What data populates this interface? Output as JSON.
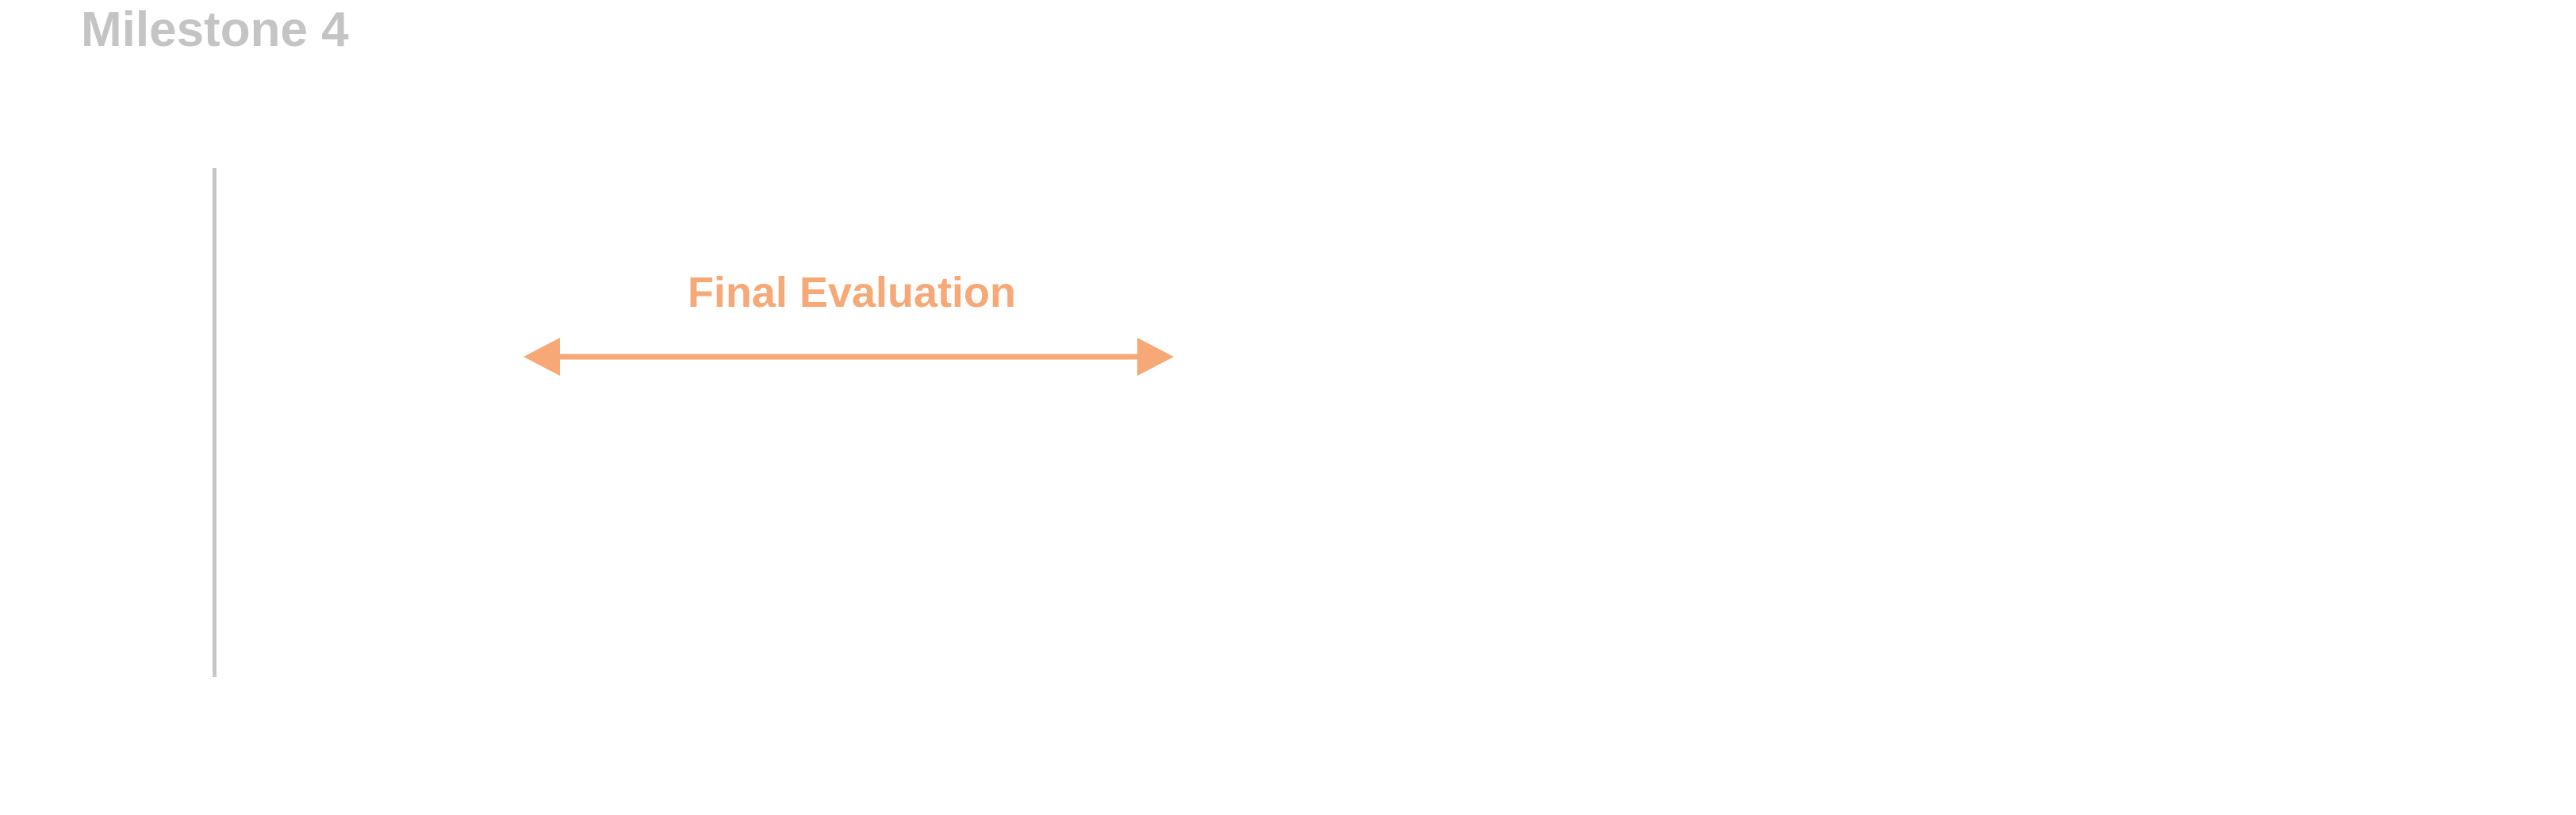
{
  "milestone": {
    "title": "Milestone 4"
  },
  "phase": {
    "label": "Final Evaluation",
    "arrow_style": "double-headed"
  },
  "colors": {
    "milestone_text": "#c4c4c4",
    "milestone_line": "#c6c6c6",
    "phase_accent": "#f7a877"
  }
}
